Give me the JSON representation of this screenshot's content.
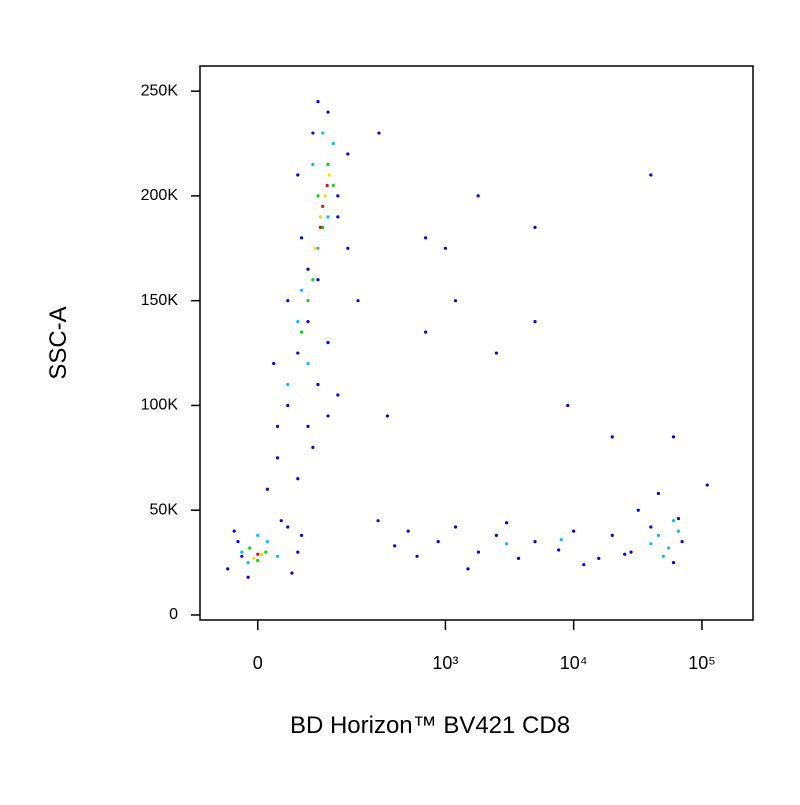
{
  "chart_data": {
    "type": "scatter",
    "x_label": "BD Horizon™ BV421 CD8",
    "y_label": "SSC-A",
    "xscale": {
      "type": "asinh",
      "cofactor": 69
    },
    "xlim": [
      -85,
      250000
    ],
    "ylim": [
      -2400,
      262000
    ],
    "xticks": [
      0,
      {
        "value": 1000,
        "label": "10³"
      },
      {
        "value": 10000,
        "label": "10⁴"
      },
      {
        "value": 100000,
        "label": "10⁵"
      }
    ],
    "yticks": [
      0,
      {
        "value": 50000,
        "label": "50K"
      },
      {
        "value": 100000,
        "label": "100K"
      },
      {
        "value": 150000,
        "label": "150K"
      },
      {
        "value": 200000,
        "label": "200K"
      },
      {
        "value": 250000,
        "label": "250K"
      }
    ],
    "series": [
      {
        "color": "#0000ff",
        "x": [
          -39,
          -25,
          -30,
          45,
          54,
          -12,
          39,
          30,
          -20,
          60,
          12,
          25,
          54,
          71,
          39,
          90,
          80,
          20,
          112,
          54,
          137,
          25,
          71,
          39,
          112,
          90,
          60,
          137,
          54,
          80,
          112,
          167,
          137,
          90,
          167,
          71,
          203,
          295,
          511,
          878,
          1810,
          1200,
          2500,
          3720,
          5000,
          7640,
          10000,
          15700,
          20000,
          25000,
          600,
          400,
          1500,
          3000,
          12000,
          31900,
          45800,
          65600,
          28000,
          60000,
          40000,
          70000,
          300,
          700,
          1000,
          1800,
          5000,
          5000,
          2500,
          9000,
          20000,
          60000,
          40000,
          1200,
          350,
          700,
          110000
        ],
        "values": [
          22000,
          35000,
          40000,
          20000,
          30000,
          18000,
          42000,
          45000,
          28000,
          38000,
          60000,
          75000,
          65000,
          90000,
          100000,
          110000,
          80000,
          120000,
          95000,
          125000,
          105000,
          90000,
          140000,
          150000,
          130000,
          160000,
          180000,
          190000,
          210000,
          230000,
          240000,
          220000,
          200000,
          245000,
          175000,
          165000,
          150000,
          45000,
          40000,
          35000,
          30000,
          42000,
          38000,
          27000,
          35000,
          31000,
          40000,
          27000,
          38000,
          29000,
          28000,
          33000,
          22000,
          44000,
          24000,
          50000,
          58000,
          46000,
          30000,
          25000,
          42000,
          35000,
          230000,
          180000,
          175000,
          200000,
          185000,
          140000,
          125000,
          100000,
          85000,
          85000,
          210000,
          150000,
          95000,
          135000,
          62000
        ]
      },
      {
        "color": "#00bfff",
        "x": [
          -12,
          12,
          -20,
          25,
          0,
          54,
          71,
          90,
          112,
          80,
          60,
          39,
          100,
          125,
          45800,
          55000,
          40000,
          65600,
          50000,
          60000,
          3000,
          8000
        ],
        "values": [
          25000,
          35000,
          30000,
          28000,
          38000,
          140000,
          120000,
          175000,
          190000,
          215000,
          155000,
          110000,
          230000,
          225000,
          38000,
          32000,
          34000,
          40000,
          28000,
          45000,
          34000,
          36000
        ]
      },
      {
        "color": "#00dd00",
        "x": [
          0,
          -10,
          10,
          80,
          100,
          90,
          112,
          71,
          125,
          60
        ],
        "values": [
          26000,
          32000,
          30000,
          160000,
          185000,
          200000,
          215000,
          150000,
          205000,
          135000
        ]
      },
      {
        "color": "#ffd700",
        "x": [
          5,
          -5,
          95,
          105,
          85,
          115
        ],
        "values": [
          29000,
          27000,
          190000,
          200000,
          175000,
          210000
        ]
      },
      {
        "color": "#ff0000",
        "x": [
          0,
          100,
          110,
          95
        ],
        "values": [
          29000,
          195000,
          205000,
          185000
        ]
      }
    ]
  }
}
